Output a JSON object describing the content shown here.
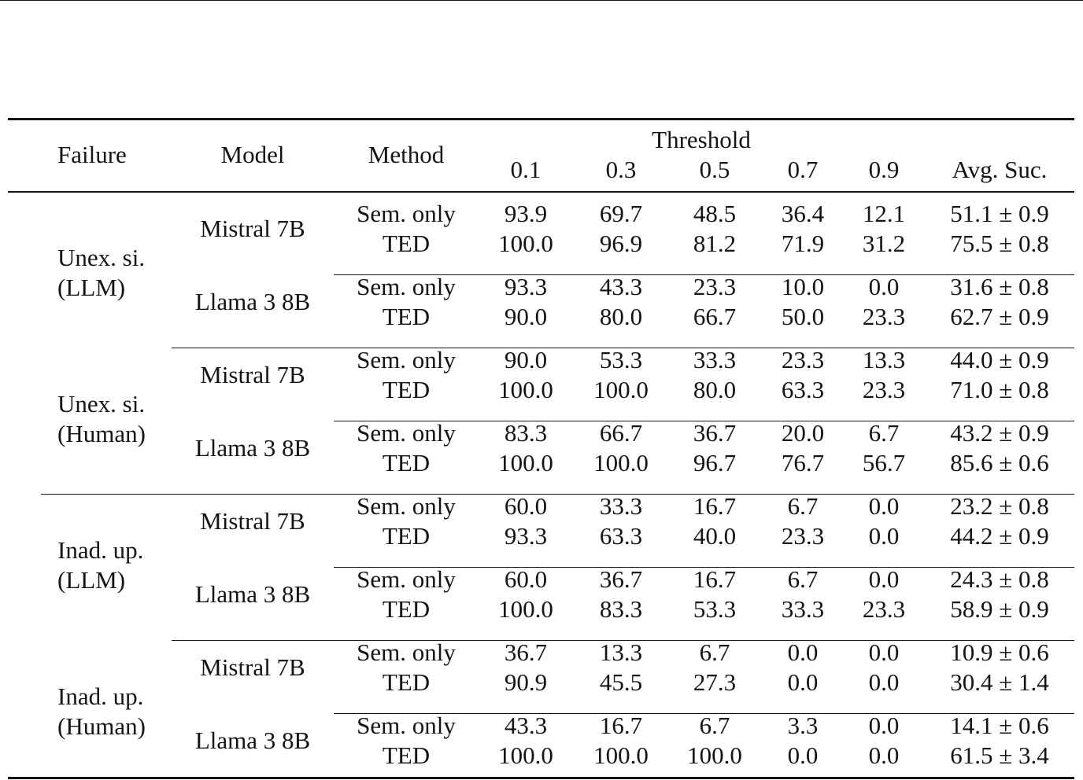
{
  "table": {
    "headers": {
      "failure": "Failure",
      "model": "Model",
      "method": "Method",
      "threshold": "Threshold",
      "thresholds": [
        "0.1",
        "0.3",
        "0.5",
        "0.7",
        "0.9"
      ],
      "avg": "Avg. Suc."
    },
    "groups": [
      {
        "failure": [
          "Unex. si.",
          "(LLM)"
        ],
        "models": [
          {
            "name": "Mistral 7B",
            "rows": [
              {
                "method": "Sem. only",
                "values": [
                  "93.9",
                  "69.7",
                  "48.5",
                  "36.4",
                  "12.1"
                ],
                "avg": "51.1 ± 0.9"
              },
              {
                "method": "TED",
                "values": [
                  "100.0",
                  "96.9",
                  "81.2",
                  "71.9",
                  "31.2"
                ],
                "avg": "75.5 ± 0.8"
              }
            ]
          },
          {
            "name": "Llama 3 8B",
            "rows": [
              {
                "method": "Sem. only",
                "values": [
                  "93.3",
                  "43.3",
                  "23.3",
                  "10.0",
                  "0.0"
                ],
                "avg": "31.6 ± 0.8"
              },
              {
                "method": "TED",
                "values": [
                  "90.0",
                  "80.0",
                  "66.7",
                  "50.0",
                  "23.3"
                ],
                "avg": "62.7 ± 0.9"
              }
            ]
          }
        ]
      },
      {
        "failure": [
          "Unex. si.",
          "(Human)"
        ],
        "models": [
          {
            "name": "Mistral 7B",
            "rows": [
              {
                "method": "Sem. only",
                "values": [
                  "90.0",
                  "53.3",
                  "33.3",
                  "23.3",
                  "13.3"
                ],
                "avg": "44.0 ± 0.9"
              },
              {
                "method": "TED",
                "values": [
                  "100.0",
                  "100.0",
                  "80.0",
                  "63.3",
                  "23.3"
                ],
                "avg": "71.0 ± 0.8"
              }
            ]
          },
          {
            "name": "Llama 3 8B",
            "rows": [
              {
                "method": "Sem. only",
                "values": [
                  "83.3",
                  "66.7",
                  "36.7",
                  "20.0",
                  "6.7"
                ],
                "avg": "43.2 ± 0.9"
              },
              {
                "method": "TED",
                "values": [
                  "100.0",
                  "100.0",
                  "96.7",
                  "76.7",
                  "56.7"
                ],
                "avg": "85.6 ± 0.6"
              }
            ]
          }
        ]
      },
      {
        "failure": [
          "Inad. up.",
          "(LLM)"
        ],
        "models": [
          {
            "name": "Mistral 7B",
            "rows": [
              {
                "method": "Sem. only",
                "values": [
                  "60.0",
                  "33.3",
                  "16.7",
                  "6.7",
                  "0.0"
                ],
                "avg": "23.2 ± 0.8"
              },
              {
                "method": "TED",
                "values": [
                  "93.3",
                  "63.3",
                  "40.0",
                  "23.3",
                  "0.0"
                ],
                "avg": "44.2 ± 0.9"
              }
            ]
          },
          {
            "name": "Llama 3 8B",
            "rows": [
              {
                "method": "Sem. only",
                "values": [
                  "60.0",
                  "36.7",
                  "16.7",
                  "6.7",
                  "0.0"
                ],
                "avg": "24.3 ± 0.8"
              },
              {
                "method": "TED",
                "values": [
                  "100.0",
                  "83.3",
                  "53.3",
                  "33.3",
                  "23.3"
                ],
                "avg": "58.9 ± 0.9"
              }
            ]
          }
        ]
      },
      {
        "failure": [
          "Inad. up.",
          "(Human)"
        ],
        "models": [
          {
            "name": "Mistral 7B",
            "rows": [
              {
                "method": "Sem. only",
                "values": [
                  "36.7",
                  "13.3",
                  "6.7",
                  "0.0",
                  "0.0"
                ],
                "avg": "10.9 ± 0.6"
              },
              {
                "method": "TED",
                "values": [
                  "90.9",
                  "45.5",
                  "27.3",
                  "0.0",
                  "0.0"
                ],
                "avg": "30.4 ± 1.4"
              }
            ]
          },
          {
            "name": "Llama 3 8B",
            "rows": [
              {
                "method": "Sem. only",
                "values": [
                  "43.3",
                  "16.7",
                  "6.7",
                  "3.3",
                  "0.0"
                ],
                "avg": "14.1 ± 0.6"
              },
              {
                "method": "TED",
                "values": [
                  "100.0",
                  "100.0",
                  "100.0",
                  "0.0",
                  "0.0"
                ],
                "avg": "61.5 ± 3.4"
              }
            ]
          }
        ]
      }
    ]
  }
}
